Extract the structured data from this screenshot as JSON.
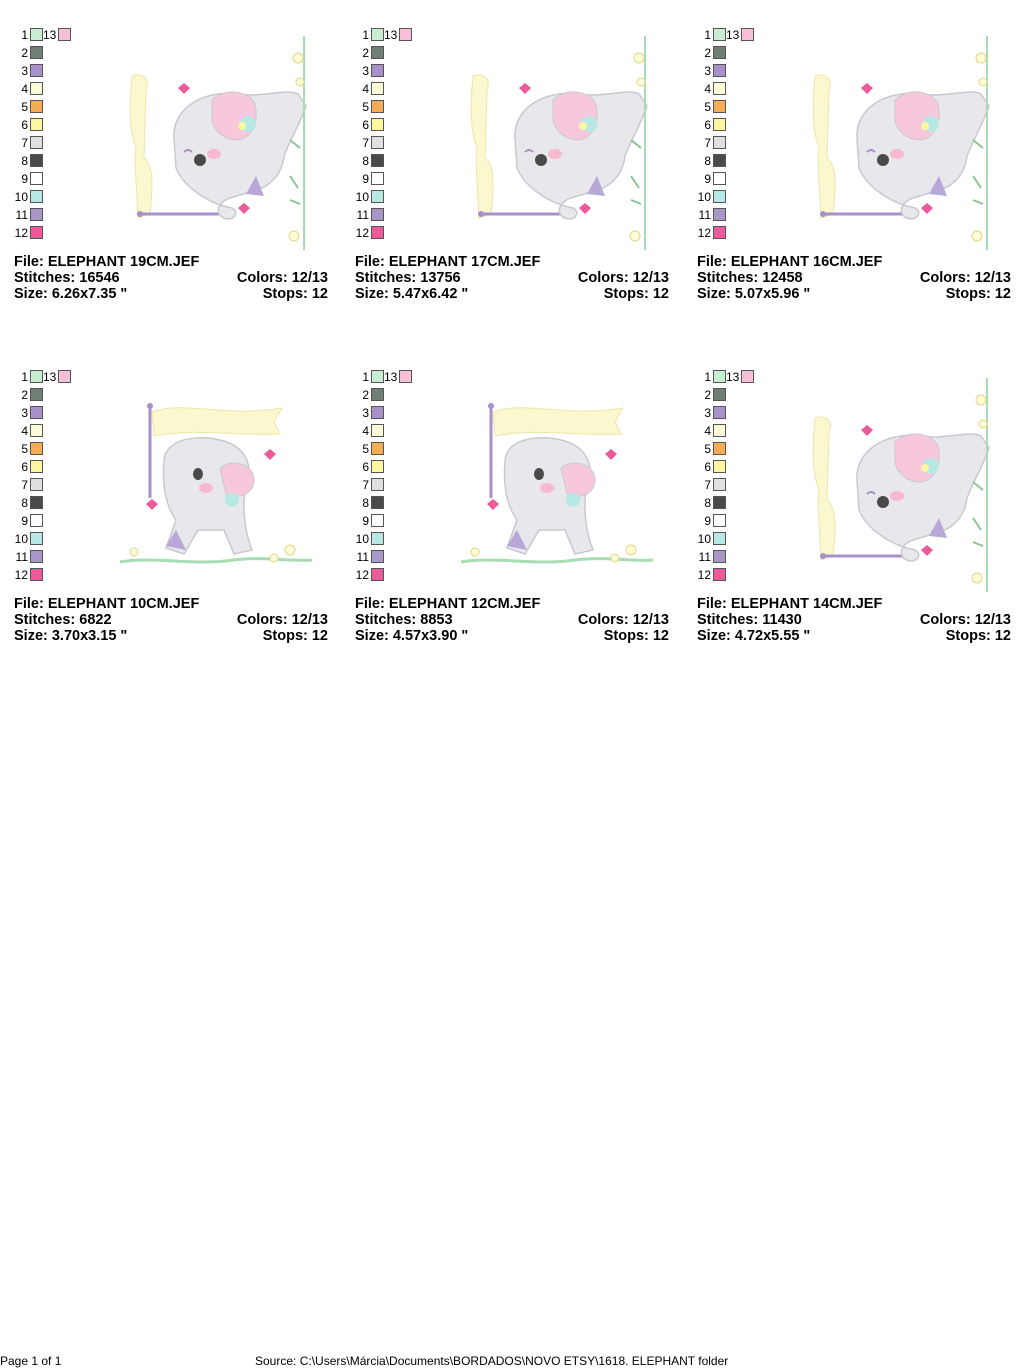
{
  "palette": {
    "numbers": [
      "1",
      "2",
      "3",
      "4",
      "5",
      "6",
      "7",
      "8",
      "9",
      "10",
      "11",
      "12"
    ],
    "extra_number": "13",
    "colors": [
      "#c8eed2",
      "#6f7f76",
      "#a890c8",
      "#fdfbd8",
      "#f5ad55",
      "#fdf6a0",
      "#e0e0e0",
      "#4a4a4a",
      "#ffffff",
      "#b8e8e4",
      "#a898c8",
      "#ec5a9a"
    ],
    "extra_color": "#f8c0d8"
  },
  "designs": [
    {
      "file": "File: ELEPHANT 19CM.JEF",
      "stitches": "Stitches: 16546",
      "colors": "Colors: 12/13",
      "size": "Size: 6.26x7.35 \"",
      "stops": "Stops: 12",
      "motif": "side"
    },
    {
      "file": "File: ELEPHANT 17CM.JEF",
      "stitches": "Stitches: 13756",
      "colors": "Colors: 12/13",
      "size": "Size: 5.47x6.42 \"",
      "stops": "Stops: 12",
      "motif": "side"
    },
    {
      "file": "File: ELEPHANT 16CM.JEF",
      "stitches": "Stitches: 12458",
      "colors": "Colors: 12/13",
      "size": "Size: 5.07x5.96 \"",
      "stops": "Stops: 12",
      "motif": "side"
    },
    {
      "file": "File: ELEPHANT 10CM.JEF",
      "stitches": "Stitches: 6822",
      "colors": "Colors: 12/13",
      "size": "Size: 3.70x3.15 \"",
      "stops": "Stops: 12",
      "motif": "walk"
    },
    {
      "file": "File: ELEPHANT 12CM.JEF",
      "stitches": "Stitches: 8853",
      "colors": "Colors: 12/13",
      "size": "Size: 4.57x3.90 \"",
      "stops": "Stops: 12",
      "motif": "walk"
    },
    {
      "file": "File: ELEPHANT 14CM.JEF",
      "stitches": "Stitches: 11430",
      "colors": "Colors: 12/13",
      "size": "Size: 4.72x5.55 \"",
      "stops": "Stops: 12",
      "motif": "side"
    }
  ],
  "footer": {
    "page": "Page 1 of 1",
    "source": "Source: C:\\Users\\Márcia\\Documents\\BORDADOS\\NOVO ETSY\\1618. ELEPHANT folder"
  }
}
